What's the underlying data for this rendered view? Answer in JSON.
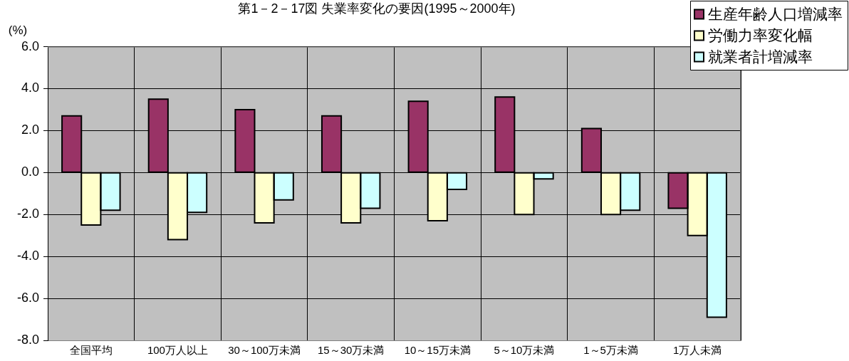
{
  "chart_data": {
    "type": "bar",
    "title": "第1－2－17図 失業率変化の要因(1995～2000年)",
    "ylabel": "(%)",
    "categories": [
      "全国平均",
      "100万人以上",
      "30～100万未満",
      "15～30万未満",
      "10～15万未満",
      "5～10万未満",
      "1～5万未満",
      "1万人未満"
    ],
    "series": [
      {
        "name": "生産年齢人口増減率",
        "color": "#993366",
        "values": [
          2.7,
          3.5,
          3.0,
          2.7,
          3.4,
          3.6,
          2.1,
          -1.7
        ]
      },
      {
        "name": "労働力率変化幅",
        "color": "#ffffcc",
        "values": [
          -2.5,
          -3.2,
          -2.4,
          -2.4,
          -2.3,
          -2.0,
          -2.0,
          -3.0
        ]
      },
      {
        "name": "就業者計増減率",
        "color": "#ccffff",
        "values": [
          -1.8,
          -1.9,
          -1.3,
          -1.7,
          -0.8,
          -0.3,
          -1.8,
          -6.9
        ]
      }
    ],
    "ylim": [
      -8,
      6
    ],
    "yticks": [
      {
        "value": -8,
        "label": "-8.0"
      },
      {
        "value": -6,
        "label": "-6.0"
      },
      {
        "value": -4,
        "label": "-4.0"
      },
      {
        "value": -2,
        "label": "-2.0"
      },
      {
        "value": 0,
        "label": "0.0"
      },
      {
        "value": 2,
        "label": "2.0"
      },
      {
        "value": 4,
        "label": "4.0"
      },
      {
        "value": 6,
        "label": "6.0"
      }
    ],
    "grid": true,
    "legend": "top right"
  }
}
